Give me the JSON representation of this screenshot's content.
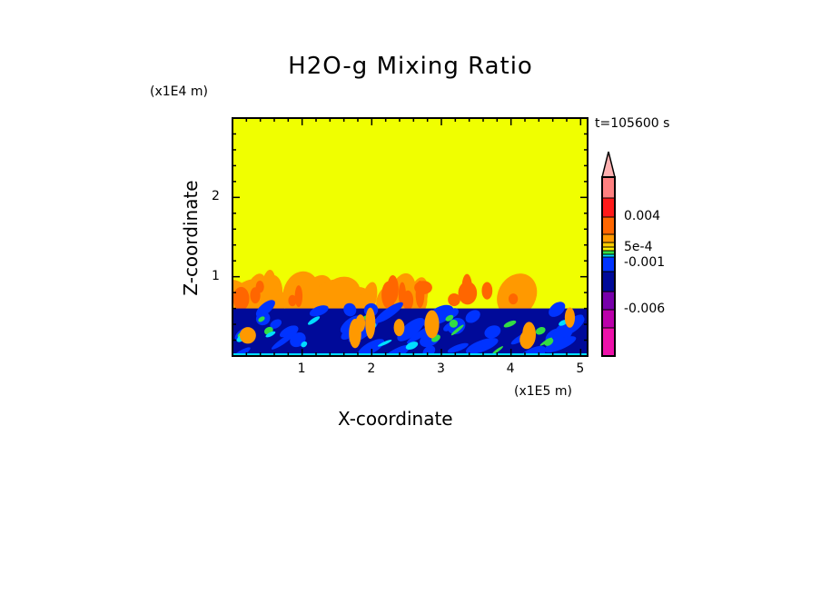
{
  "chart_data": {
    "type": "heatmap",
    "title": "H2O-g Mixing Ratio",
    "xlabel": "X-coordinate",
    "ylabel": "Z-coordinate",
    "x_unit": "(x1E5 m)",
    "z_unit": "(x1E4 m)",
    "time_label": "t=105600 s",
    "xlim": [
      0,
      5.1
    ],
    "ylim": [
      0,
      3.0
    ],
    "x_ticks": [
      "1",
      "2",
      "3",
      "4",
      "5"
    ],
    "x_tick_values": [
      1,
      2,
      3,
      4,
      5
    ],
    "y_ticks": [
      "1",
      "2"
    ],
    "y_tick_values": [
      1,
      2
    ],
    "colorbar": {
      "labels": [
        "0.004",
        "5e-4",
        "-0.001",
        "-0.006"
      ],
      "label_values": [
        0.004,
        0.0005,
        -0.001,
        -0.006
      ],
      "colors": [
        "#ff8080",
        "#ff1a1a",
        "#ff6600",
        "#ff9900",
        "#ffcc00",
        "#ffee00",
        "#33dd44",
        "#00ddff",
        "#0033ff",
        "#000a99",
        "#7700aa",
        "#bb00aa",
        "#ee11aa"
      ],
      "extend_top_color": "#ffb0b0"
    },
    "background_color": "#f0ff00",
    "regions": {
      "upper_layer_top_z": 1.05,
      "moist_layer_top_z": 0.6
    }
  }
}
